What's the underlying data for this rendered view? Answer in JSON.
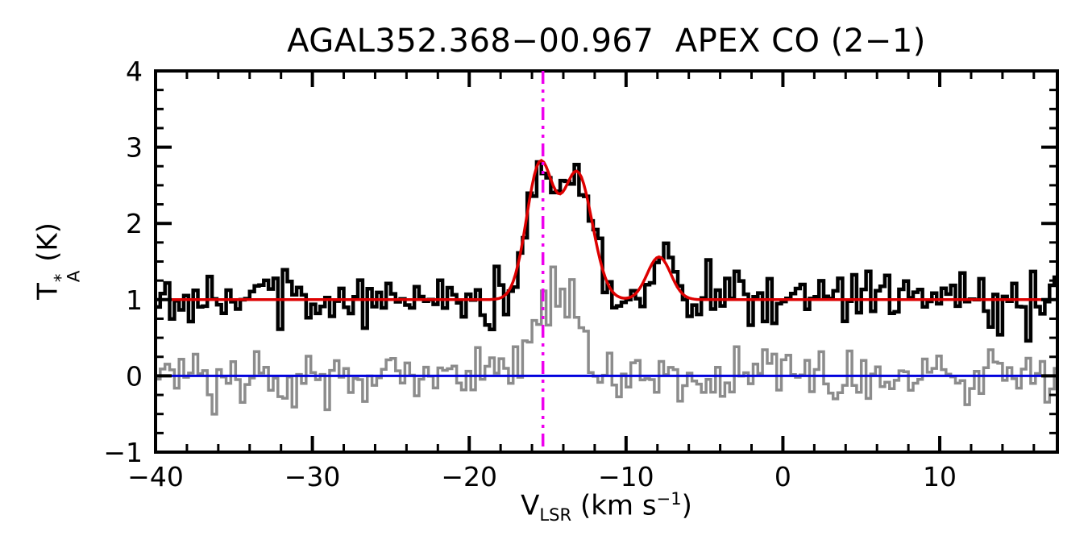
{
  "chart_data": {
    "type": "line",
    "title": "AGAL352.368−00.967  APEX CO (2−1)",
    "xlabel": {
      "base": "V",
      "sub": "LSR",
      "mid": " (km s",
      "sup": "−1",
      "end": ")"
    },
    "ylabel": {
      "base": "T",
      "sup": "*",
      "sub": "A",
      "rest": " (K)"
    },
    "xlim": [
      -40,
      17.5
    ],
    "ylim": [
      -1,
      4
    ],
    "xticks": [
      -40,
      -30,
      -20,
      -10,
      0,
      10
    ],
    "xtick_labels": [
      "−40",
      "−30",
      "−20",
      "−10",
      "0",
      "10"
    ],
    "x_minor_step": 2,
    "yticks": [
      -1,
      0,
      1,
      2,
      3,
      4
    ],
    "ytick_labels": [
      "−1",
      "0",
      "1",
      "2",
      "3",
      "4"
    ],
    "y_minor_step": 0.25,
    "grid": false,
    "legend": null,
    "baseline_offset": 1,
    "channel_width": 0.3,
    "fit_components": [
      {
        "center": -15.5,
        "amp": 1.75,
        "sigma": 0.85
      },
      {
        "center": -13.1,
        "amp": 1.65,
        "sigma": 0.95
      },
      {
        "center": -7.9,
        "amp": 0.56,
        "sigma": 0.75
      }
    ],
    "gray_components": [
      {
        "center": -15.1,
        "amp": 0.78,
        "sigma": 0.9
      },
      {
        "center": -13.5,
        "amp": 0.72,
        "sigma": 0.9
      }
    ],
    "noise": {
      "black_sigma": 0.17,
      "gray_sigma": 0.18,
      "seed": 20
    },
    "vlsr_marker": -15.3,
    "colors": {
      "spectrum": "#000000",
      "fit": "#dd0000",
      "gray_spectrum": "#8c8c8c",
      "zero_line": "#0000dd",
      "marker": "#ee00ee",
      "axis": "#000000"
    }
  }
}
